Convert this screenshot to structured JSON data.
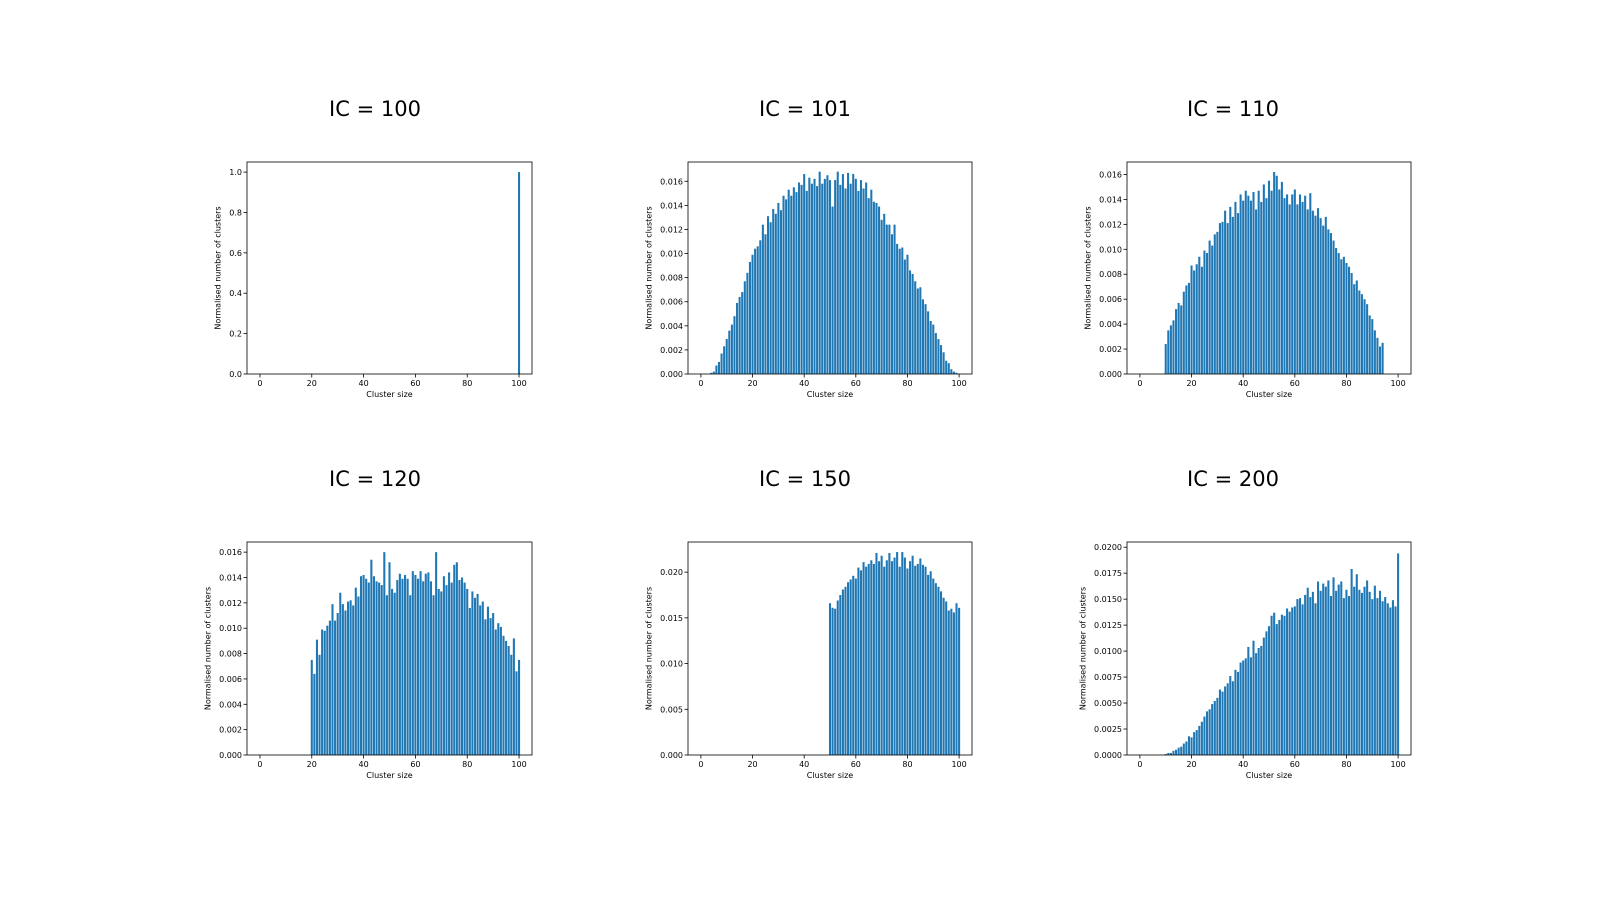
{
  "figure": {
    "bar_color": "#1f77b4",
    "xlabel": "Cluster size",
    "ylabel": "Normalised number of clusters"
  },
  "chart_data": [
    {
      "type": "bar",
      "title": "IC = 100",
      "xlabel": "Cluster size",
      "ylabel": "Normalised number of clusters",
      "xlim": [
        -5,
        105
      ],
      "xticks": [
        0,
        20,
        40,
        60,
        80,
        100
      ],
      "ylim": [
        0,
        1.05
      ],
      "yticks": [
        0.0,
        0.2,
        0.4,
        0.6,
        0.8,
        1.0
      ],
      "ytick_labels": [
        "0.0",
        "0.2",
        "0.4",
        "0.6",
        "0.8",
        "1.0"
      ],
      "x": [
        100
      ],
      "values": [
        1.0
      ]
    },
    {
      "type": "bar",
      "title": "IC = 101",
      "xlabel": "Cluster size",
      "ylabel": "Normalised number of clusters",
      "xlim": [
        -5,
        105
      ],
      "xticks": [
        0,
        20,
        40,
        60,
        80,
        100
      ],
      "ylim": [
        0,
        0.0176
      ],
      "yticks": [
        0.0,
        0.002,
        0.004,
        0.006,
        0.008,
        0.01,
        0.012,
        0.014,
        0.016
      ],
      "ytick_labels": [
        "0.000",
        "0.002",
        "0.004",
        "0.006",
        "0.008",
        "0.010",
        "0.012",
        "0.014",
        "0.016"
      ],
      "x_start": 1,
      "values": [
        0.0,
        0.0,
        0.0,
        0.0001,
        0.0002,
        0.0007,
        0.001,
        0.0017,
        0.0023,
        0.0029,
        0.0036,
        0.0041,
        0.0048,
        0.0059,
        0.0064,
        0.0068,
        0.0077,
        0.0084,
        0.0093,
        0.0099,
        0.0104,
        0.0106,
        0.0111,
        0.0124,
        0.0116,
        0.0131,
        0.0126,
        0.0137,
        0.0133,
        0.0142,
        0.0136,
        0.0148,
        0.0145,
        0.0153,
        0.0148,
        0.0155,
        0.0151,
        0.0159,
        0.0157,
        0.0166,
        0.0152,
        0.0163,
        0.0158,
        0.0162,
        0.0156,
        0.0168,
        0.0158,
        0.0162,
        0.0165,
        0.0161,
        0.0139,
        0.0161,
        0.0168,
        0.0157,
        0.0166,
        0.0154,
        0.0167,
        0.0158,
        0.0166,
        0.0162,
        0.0152,
        0.0161,
        0.0154,
        0.0159,
        0.0146,
        0.0153,
        0.0143,
        0.0142,
        0.0139,
        0.0128,
        0.0133,
        0.0124,
        0.0124,
        0.0116,
        0.0124,
        0.0108,
        0.0104,
        0.0105,
        0.0095,
        0.0099,
        0.0086,
        0.0083,
        0.0077,
        0.0071,
        0.0072,
        0.0062,
        0.0058,
        0.0052,
        0.0044,
        0.0041,
        0.0034,
        0.0029,
        0.0024,
        0.0018,
        0.0011,
        0.0009,
        0.0004,
        0.0002,
        0.0001,
        0.0,
        0.0
      ]
    },
    {
      "type": "bar",
      "title": "IC = 110",
      "xlabel": "Cluster size",
      "ylabel": "Normalised number of clusters",
      "xlim": [
        -5,
        105
      ],
      "xticks": [
        0,
        20,
        40,
        60,
        80,
        100
      ],
      "ylim": [
        0,
        0.017
      ],
      "yticks": [
        0.0,
        0.002,
        0.004,
        0.006,
        0.008,
        0.01,
        0.012,
        0.014,
        0.016
      ],
      "ytick_labels": [
        "0.000",
        "0.002",
        "0.004",
        "0.006",
        "0.008",
        "0.010",
        "0.012",
        "0.014",
        "0.016"
      ],
      "x_start": 10,
      "values": [
        0.0024,
        0.0035,
        0.0039,
        0.0043,
        0.0052,
        0.0057,
        0.0055,
        0.0066,
        0.0071,
        0.0073,
        0.0087,
        0.0083,
        0.0088,
        0.0094,
        0.0086,
        0.0099,
        0.0097,
        0.0107,
        0.0103,
        0.0112,
        0.0114,
        0.0121,
        0.0122,
        0.0131,
        0.0121,
        0.0134,
        0.0126,
        0.0138,
        0.0129,
        0.0144,
        0.0139,
        0.0147,
        0.0143,
        0.0139,
        0.0146,
        0.0132,
        0.0147,
        0.0138,
        0.0152,
        0.0141,
        0.0155,
        0.0147,
        0.0162,
        0.0159,
        0.0148,
        0.0154,
        0.0141,
        0.0144,
        0.0136,
        0.0144,
        0.0148,
        0.0136,
        0.0144,
        0.0138,
        0.0143,
        0.0132,
        0.0145,
        0.0131,
        0.0127,
        0.0133,
        0.0125,
        0.0119,
        0.0126,
        0.0116,
        0.0113,
        0.0107,
        0.0101,
        0.0097,
        0.0092,
        0.0094,
        0.0089,
        0.0086,
        0.0081,
        0.0072,
        0.0075,
        0.0067,
        0.0064,
        0.006,
        0.0056,
        0.0047,
        0.0044,
        0.0035,
        0.0029,
        0.0022,
        0.0025
      ]
    },
    {
      "type": "bar",
      "title": "IC = 120",
      "xlabel": "Cluster size",
      "ylabel": "Normalised number of clusters",
      "xlim": [
        -5,
        105
      ],
      "xticks": [
        0,
        20,
        40,
        60,
        80,
        100
      ],
      "ylim": [
        0,
        0.0168
      ],
      "yticks": [
        0.0,
        0.002,
        0.004,
        0.006,
        0.008,
        0.01,
        0.012,
        0.014,
        0.016
      ],
      "ytick_labels": [
        "0.000",
        "0.002",
        "0.004",
        "0.006",
        "0.008",
        "0.010",
        "0.012",
        "0.014",
        "0.016"
      ],
      "x_start": 20,
      "values": [
        0.0075,
        0.0064,
        0.0091,
        0.0079,
        0.0099,
        0.0098,
        0.0102,
        0.0106,
        0.0119,
        0.0106,
        0.0112,
        0.0128,
        0.0119,
        0.0114,
        0.0121,
        0.0122,
        0.0118,
        0.0132,
        0.0125,
        0.0141,
        0.0142,
        0.0139,
        0.0136,
        0.0154,
        0.0141,
        0.0137,
        0.0136,
        0.0134,
        0.016,
        0.0126,
        0.0152,
        0.0131,
        0.0128,
        0.0138,
        0.0143,
        0.0139,
        0.0142,
        0.0139,
        0.0126,
        0.0145,
        0.0142,
        0.0139,
        0.0145,
        0.0137,
        0.0143,
        0.0144,
        0.0137,
        0.0126,
        0.016,
        0.0131,
        0.0129,
        0.0141,
        0.0134,
        0.0144,
        0.0136,
        0.015,
        0.0152,
        0.0138,
        0.014,
        0.0136,
        0.0131,
        0.0116,
        0.0129,
        0.0124,
        0.0127,
        0.0118,
        0.0121,
        0.0107,
        0.0117,
        0.0108,
        0.0112,
        0.0099,
        0.0104,
        0.0101,
        0.0094,
        0.009,
        0.0086,
        0.0079,
        0.0092,
        0.0066,
        0.0075
      ]
    },
    {
      "type": "bar",
      "title": "IC = 150",
      "xlabel": "Cluster size",
      "ylabel": "Normalised number of clusters",
      "xlim": [
        -5,
        105
      ],
      "xticks": [
        0,
        20,
        40,
        60,
        80,
        100
      ],
      "ylim": [
        0,
        0.0233
      ],
      "yticks": [
        0.0,
        0.005,
        0.01,
        0.015,
        0.02
      ],
      "ytick_labels": [
        "0.000",
        "0.005",
        "0.010",
        "0.015",
        "0.020"
      ],
      "x_start": 50,
      "values": [
        0.0166,
        0.0161,
        0.016,
        0.0169,
        0.0175,
        0.0181,
        0.0184,
        0.0189,
        0.0192,
        0.0196,
        0.0193,
        0.0205,
        0.0202,
        0.0211,
        0.0206,
        0.0209,
        0.0213,
        0.0209,
        0.0221,
        0.0212,
        0.0218,
        0.0206,
        0.0213,
        0.0221,
        0.0212,
        0.0216,
        0.0222,
        0.0206,
        0.0222,
        0.0216,
        0.0204,
        0.0212,
        0.0218,
        0.0207,
        0.0209,
        0.0215,
        0.0208,
        0.0206,
        0.0197,
        0.0201,
        0.0193,
        0.0188,
        0.0184,
        0.0179,
        0.0172,
        0.0168,
        0.0158,
        0.016,
        0.0156,
        0.0166,
        0.0161
      ]
    },
    {
      "type": "bar",
      "title": "IC = 200",
      "xlabel": "Cluster size",
      "ylabel": "Normalised number of clusters",
      "xlim": [
        -5,
        105
      ],
      "xticks": [
        0,
        20,
        40,
        60,
        80,
        100
      ],
      "ylim": [
        0,
        0.0205
      ],
      "yticks": [
        0.0,
        0.0025,
        0.005,
        0.0075,
        0.01,
        0.0125,
        0.015,
        0.0175,
        0.02
      ],
      "ytick_labels": [
        "0.0000",
        "0.0025",
        "0.0050",
        "0.0075",
        "0.0100",
        "0.0125",
        "0.0150",
        "0.0175",
        "0.0200"
      ],
      "x_start": 1,
      "values": [
        0.0,
        0.0,
        0.0,
        0.0,
        0.0,
        0.0,
        0.0,
        0.0,
        0.0,
        0.0001,
        0.0002,
        0.0002,
        0.0004,
        0.0005,
        0.0007,
        0.0008,
        0.0011,
        0.0013,
        0.0018,
        0.0017,
        0.0022,
        0.0024,
        0.0028,
        0.0032,
        0.0037,
        0.0042,
        0.0044,
        0.0049,
        0.0052,
        0.0055,
        0.0063,
        0.0061,
        0.0066,
        0.0069,
        0.0076,
        0.0071,
        0.0082,
        0.008,
        0.0089,
        0.0091,
        0.0093,
        0.0104,
        0.0094,
        0.011,
        0.0098,
        0.0103,
        0.0105,
        0.0113,
        0.0119,
        0.0124,
        0.0134,
        0.0137,
        0.0126,
        0.013,
        0.0135,
        0.0134,
        0.0141,
        0.0138,
        0.0142,
        0.0143,
        0.015,
        0.0151,
        0.0145,
        0.0154,
        0.0161,
        0.0152,
        0.0157,
        0.0146,
        0.0167,
        0.0158,
        0.0165,
        0.0162,
        0.0168,
        0.0153,
        0.0171,
        0.0158,
        0.0164,
        0.0167,
        0.0151,
        0.0159,
        0.0153,
        0.0179,
        0.0162,
        0.0174,
        0.0159,
        0.0156,
        0.0162,
        0.0168,
        0.0157,
        0.015,
        0.0163,
        0.0151,
        0.0158,
        0.0148,
        0.0152,
        0.0146,
        0.0142,
        0.0149,
        0.0143,
        0.0194
      ]
    }
  ]
}
